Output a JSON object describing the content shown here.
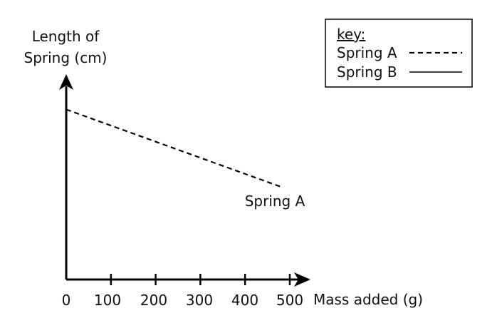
{
  "chart_data": {
    "type": "line",
    "y_axis_label_lines": [
      "Length of",
      "Spring (cm)"
    ],
    "xlabel": "Mass added (g)",
    "xlim": [
      0,
      500
    ],
    "x_ticks": [
      0,
      100,
      200,
      300,
      400,
      500
    ],
    "x_tick_labels": [
      "0",
      "100",
      "200",
      "300",
      "400",
      "500"
    ],
    "y_ticks_shown": false,
    "series": [
      {
        "name": "Spring A",
        "line_style": "dashed",
        "x": [
          0,
          480
        ],
        "relative_y": [
          0.88,
          0.48
        ],
        "annotation": "Spring A"
      }
    ],
    "legend": {
      "title": "key:",
      "placement": "top-right",
      "entries": [
        {
          "label": "Spring A",
          "line_style": "dashed"
        },
        {
          "label": "Spring B",
          "line_style": "solid"
        }
      ]
    },
    "grid": false,
    "colors": {
      "axis": "#000000",
      "line": "#000000",
      "text": "#111111"
    }
  }
}
